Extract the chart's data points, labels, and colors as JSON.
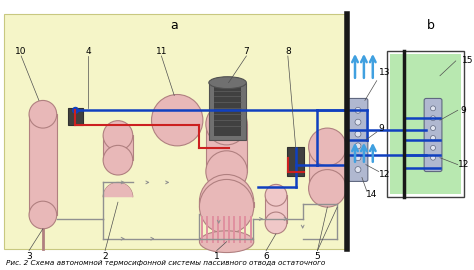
{
  "title_a": "a",
  "title_b": "b",
  "caption": "Рис. 2 Схема автономной термосифонной системы пассивного отвода остаточного",
  "bg_yellow": "#f5f5c8",
  "bg_white": "#ffffff",
  "bg_green": "#b8e8b0",
  "vessel_fill": "#e8b8b8",
  "vessel_edge": "#b08080",
  "pipe_blue": "#1040c0",
  "pipe_red": "#cc2020",
  "pipe_gray": "#909090",
  "wall_color": "#181818",
  "arrow_blue": "#40a0e0",
  "label_color": "#000000",
  "hx_fill": "#b0b8d0",
  "hx_edge": "#606880",
  "valve_fill": "#404040",
  "tower_fill": "#707070",
  "tower_dark": "#404040"
}
